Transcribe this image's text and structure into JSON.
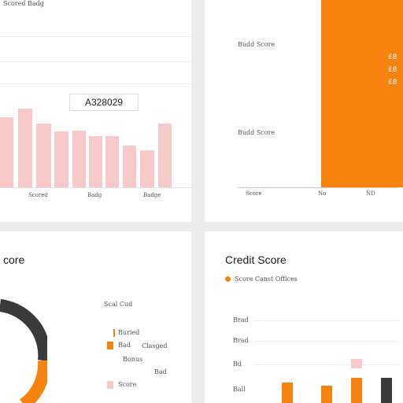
{
  "top_left": {
    "label": "Scored Badg",
    "badge": "A328029",
    "x_labels": [
      "Scored",
      "Badg",
      "Badge"
    ]
  },
  "top_right": {
    "y_labels": [
      "Budd Score",
      "Budd Score"
    ],
    "x_labels": [
      "Score",
      "No",
      "ND"
    ],
    "side_labels": [
      "£8",
      "£8",
      "£8"
    ]
  },
  "bottom_left": {
    "title": "core",
    "header": "Scal Cud",
    "legend": [
      "Buried",
      "Bad",
      "Clasged",
      "Bonus",
      "Bad",
      "Score"
    ]
  },
  "bottom_right": {
    "title": "Credit Score",
    "legend": "Score Canst Offices",
    "y_labels": [
      "Brad",
      "Brad",
      "Bd",
      "Ball"
    ]
  },
  "colors": {
    "accent": "#f7830f",
    "pink": "#f8c9c9",
    "dark": "#3a3a3a"
  }
}
